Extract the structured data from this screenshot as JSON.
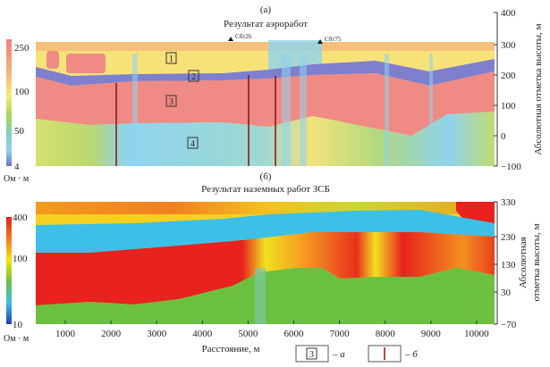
{
  "chart_data": [
    {
      "type": "heatmap",
      "panel_label": "(а)",
      "title": "Результат аэроработ",
      "ylabel": "Абсолютная отметка высоты, м",
      "yticks": [
        "400",
        "300",
        "200",
        "100",
        "0",
        "−100"
      ],
      "ylim": [
        -100,
        400
      ],
      "colorbar": {
        "ticks": [
          "250",
          "100",
          "50",
          "4"
        ],
        "unit": "Ом · м",
        "range": [
          4,
          250
        ]
      },
      "well_labels": [
        "Сбт26",
        "Сбт75"
      ],
      "layer_labels": [
        "1",
        "2",
        "3",
        "4"
      ]
    },
    {
      "type": "heatmap",
      "panel_label": "(б)",
      "title": "Результат наземных работ ЗСБ",
      "ylabel": "Абсолютная отметка высоты, м",
      "yticks": [
        "330",
        "230",
        "130",
        "30",
        "−70"
      ],
      "ylim": [
        -70,
        330
      ],
      "xlabel": "Расстояние, м",
      "xticks": [
        "1000",
        "2000",
        "3000",
        "4000",
        "5000",
        "6000",
        "7000",
        "8000",
        "9000",
        "10000"
      ],
      "colorbar": {
        "ticks": [
          "400",
          "100",
          "10"
        ],
        "unit": "Ом · м",
        "range": [
          10,
          400
        ]
      }
    }
  ],
  "legend": {
    "item_a": {
      "symbol": "3",
      "label": "– а"
    },
    "item_b": {
      "label": "– б"
    }
  },
  "colors": {
    "red": "#f08a84",
    "blue": "#7f7fd0",
    "yellow": "#f7e27a",
    "cyan": "#8fd3ee",
    "wellline": "#8b1010"
  }
}
